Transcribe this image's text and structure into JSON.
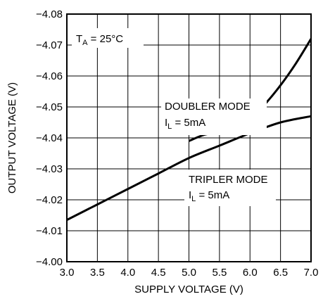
{
  "chart_data": {
    "type": "line",
    "xlabel": "SUPPLY VOLTAGE (V)",
    "ylabel": "OUTPUT VOLTAGE (V)",
    "xlim": [
      3.0,
      7.0
    ],
    "ylim": [
      -4.0,
      -4.08
    ],
    "x_ticks": [
      "3.0",
      "3.5",
      "4.0",
      "4.5",
      "5.0",
      "5.5",
      "6.0",
      "6.5",
      "7.0"
    ],
    "y_ticks": [
      "-4.00",
      "-4.01",
      "-4.02",
      "-4.03",
      "-4.04",
      "-4.05",
      "-4.06",
      "-4.07",
      "-4.08"
    ],
    "grid": true,
    "annotations": {
      "temperature": {
        "prefix": "T",
        "sub": "A",
        "rest": " = 25°C"
      },
      "doubler": {
        "line1": "DOUBLER MODE",
        "prefix": "I",
        "sub": "L",
        "rest": " = 5mA"
      },
      "tripler": {
        "line1": "TRIPLER MODE",
        "prefix": "I",
        "sub": "L",
        "rest": " = 5mA"
      }
    },
    "series": [
      {
        "label": "DOUBLER MODE",
        "x": [
          5.0,
          5.25,
          5.5,
          5.75,
          6.0,
          6.25,
          6.5,
          6.75,
          7.0
        ],
        "y": [
          -4.039,
          -4.041,
          -4.042,
          -4.044,
          -4.046,
          -4.051,
          -4.057,
          -4.064,
          -4.072
        ]
      },
      {
        "label": "TRIPLER MODE",
        "x": [
          3.0,
          3.5,
          4.0,
          4.5,
          5.0,
          5.5,
          6.0,
          6.5,
          7.0
        ],
        "y": [
          -4.0135,
          -4.0185,
          -4.0235,
          -4.0285,
          -4.0335,
          -4.0375,
          -4.0415,
          -4.045,
          -4.047
        ]
      }
    ]
  }
}
